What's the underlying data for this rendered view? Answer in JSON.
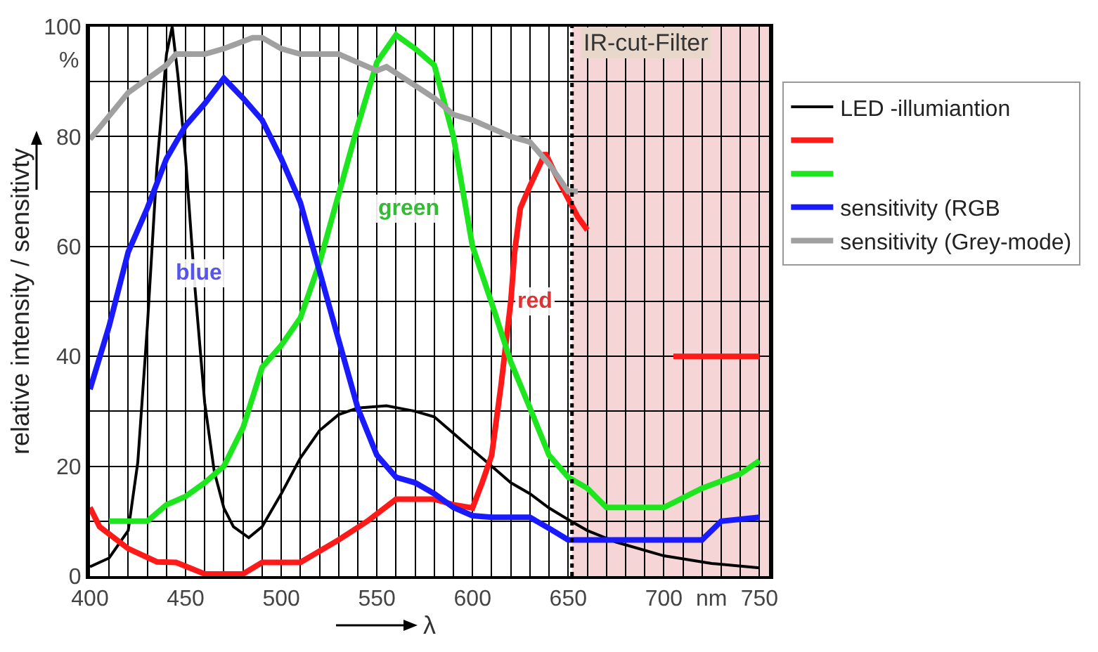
{
  "chart_data": {
    "type": "line",
    "xlabel": "λ",
    "ylabel": "relative intensity / sensitivty",
    "xlim": [
      400,
      755
    ],
    "ylim": [
      0,
      100
    ],
    "xticks": [
      400,
      {
        "value": 410,
        "label": null
      },
      {
        "value": 420,
        "label": null
      },
      {
        "value": 430,
        "label": null
      },
      {
        "value": 440,
        "label": null
      },
      450,
      {
        "value": 460,
        "label": null
      },
      {
        "value": 470,
        "label": null
      },
      {
        "value": 480,
        "label": null
      },
      {
        "value": 490,
        "label": null
      },
      500,
      {
        "value": 510,
        "label": null
      },
      {
        "value": 520,
        "label": null
      },
      {
        "value": 530,
        "label": null
      },
      {
        "value": 540,
        "label": null
      },
      550,
      {
        "value": 560,
        "label": null
      },
      {
        "value": 570,
        "label": null
      },
      {
        "value": 580,
        "label": null
      },
      {
        "value": 590,
        "label": null
      },
      600,
      {
        "value": 610,
        "label": null
      },
      {
        "value": 620,
        "label": null
      },
      {
        "value": 630,
        "label": null
      },
      {
        "value": 640,
        "label": null
      },
      650,
      {
        "value": 660,
        "label": null
      },
      {
        "value": 670,
        "label": null
      },
      {
        "value": 680,
        "label": null
      },
      {
        "value": 690,
        "label": null
      },
      700,
      {
        "value": 710,
        "label": null
      },
      {
        "value": 720,
        "label": null
      },
      {
        "value": 730,
        "label": null
      },
      {
        "value": 740,
        "label": null
      },
      750
    ],
    "yticks": [
      0,
      {
        "value": 10,
        "label": null
      },
      20,
      {
        "value": 30,
        "label": null
      },
      40,
      {
        "value": 50,
        "label": null
      },
      60,
      {
        "value": 70,
        "label": null
      },
      80,
      {
        "value": 90,
        "label": null
      },
      100
    ],
    "grid": true,
    "legend": "right",
    "line_style": "solid",
    "marker": "none",
    "series": [
      {
        "name": "LED -illumiantion",
        "color": "#000000",
        "x": [
          400,
          410,
          420,
          425,
          430,
          435,
          440,
          443,
          446,
          450,
          455,
          460,
          465,
          470,
          475,
          483,
          490,
          500,
          510,
          520,
          530,
          540,
          555,
          570,
          580,
          590,
          600,
          610,
          620,
          630,
          640,
          650,
          660,
          675,
          700,
          725,
          750
        ],
        "values": [
          1.7,
          3.3,
          8.3,
          20.7,
          45.5,
          74.5,
          95,
          100,
          91,
          76,
          52,
          31.5,
          19,
          12.4,
          9,
          7,
          9,
          15,
          21.5,
          26.5,
          29.4,
          30.6,
          31,
          30,
          29,
          26,
          23,
          20,
          17,
          15,
          12.4,
          10.3,
          8.3,
          6.2,
          3.7,
          2.3,
          1.5
        ]
      },
      {
        "color": "#ff1a1a",
        "x": [
          400,
          405,
          420,
          435,
          445,
          460,
          480,
          490,
          510,
          530,
          545,
          560,
          580,
          590,
          600,
          605,
          610,
          615,
          620,
          622,
          625,
          630,
          638,
          645,
          650,
          655,
          660,
          680,
          705,
          750
        ],
        "values": [
          12.5,
          9,
          5,
          2.6,
          2.5,
          0.4,
          0.4,
          2.5,
          2.5,
          6.6,
          10,
          14,
          14,
          13,
          12.4,
          17,
          22,
          35,
          50,
          59,
          67,
          71,
          77,
          72,
          68.7,
          65.4,
          63,
          null,
          40,
          40
        ]
      },
      {
        "color": "#1ee61e",
        "x": [
          410,
          430,
          440,
          450,
          460,
          470,
          480,
          490,
          500,
          510,
          520,
          530,
          540,
          550,
          560,
          570,
          580,
          590,
          600,
          610,
          620,
          630,
          640,
          650,
          660,
          670,
          690,
          700,
          720,
          740,
          750
        ],
        "values": [
          10,
          10,
          13,
          14.5,
          17,
          20,
          27,
          38,
          42,
          47,
          57,
          69.5,
          82,
          93.5,
          98.5,
          96,
          93,
          80,
          60,
          49.7,
          39,
          30.6,
          22,
          18,
          16,
          12.5,
          12.5,
          12.5,
          16,
          18.6,
          21
        ]
      },
      {
        "name": "sensitivity (RGB",
        "color": "#1a1aff",
        "x": [
          400,
          410,
          420,
          430,
          440,
          450,
          460,
          470,
          480,
          490,
          500,
          510,
          520,
          530,
          540,
          550,
          560,
          570,
          580,
          590,
          600,
          610,
          630,
          640,
          650,
          700,
          720,
          730,
          750
        ],
        "values": [
          34,
          45.5,
          59,
          67,
          76,
          82,
          86,
          90.6,
          87,
          83,
          76,
          68,
          55.5,
          43,
          30.6,
          22,
          18,
          17,
          15,
          12.5,
          11,
          10.7,
          10.7,
          8.7,
          6.6,
          6.6,
          6.6,
          10,
          10.7
        ]
      },
      {
        "name": "sensitivity (Grey-mode)",
        "color": "#a0a0a0",
        "x": [
          400,
          420,
          440,
          445,
          460,
          470,
          485,
          490,
          500,
          510,
          530,
          540,
          550,
          555,
          580,
          590,
          600,
          620,
          630,
          640,
          650,
          655
        ],
        "values": [
          79.5,
          88,
          93,
          95,
          95,
          96,
          98,
          98,
          96,
          95,
          95,
          93.5,
          92,
          92.7,
          87,
          84,
          83,
          80,
          79,
          75,
          70,
          70
        ]
      }
    ],
    "bands": [
      {
        "axis": "x",
        "from": 652,
        "to": 755,
        "label": "IR-cut-Filter",
        "color": "#f5d5d5"
      }
    ],
    "ref_lines": [
      {
        "axis": "x",
        "value": 652,
        "line_style": "dotted",
        "color": "#000000"
      }
    ],
    "annotations": [
      "%",
      "nm",
      "blue",
      "green",
      "red"
    ]
  }
}
